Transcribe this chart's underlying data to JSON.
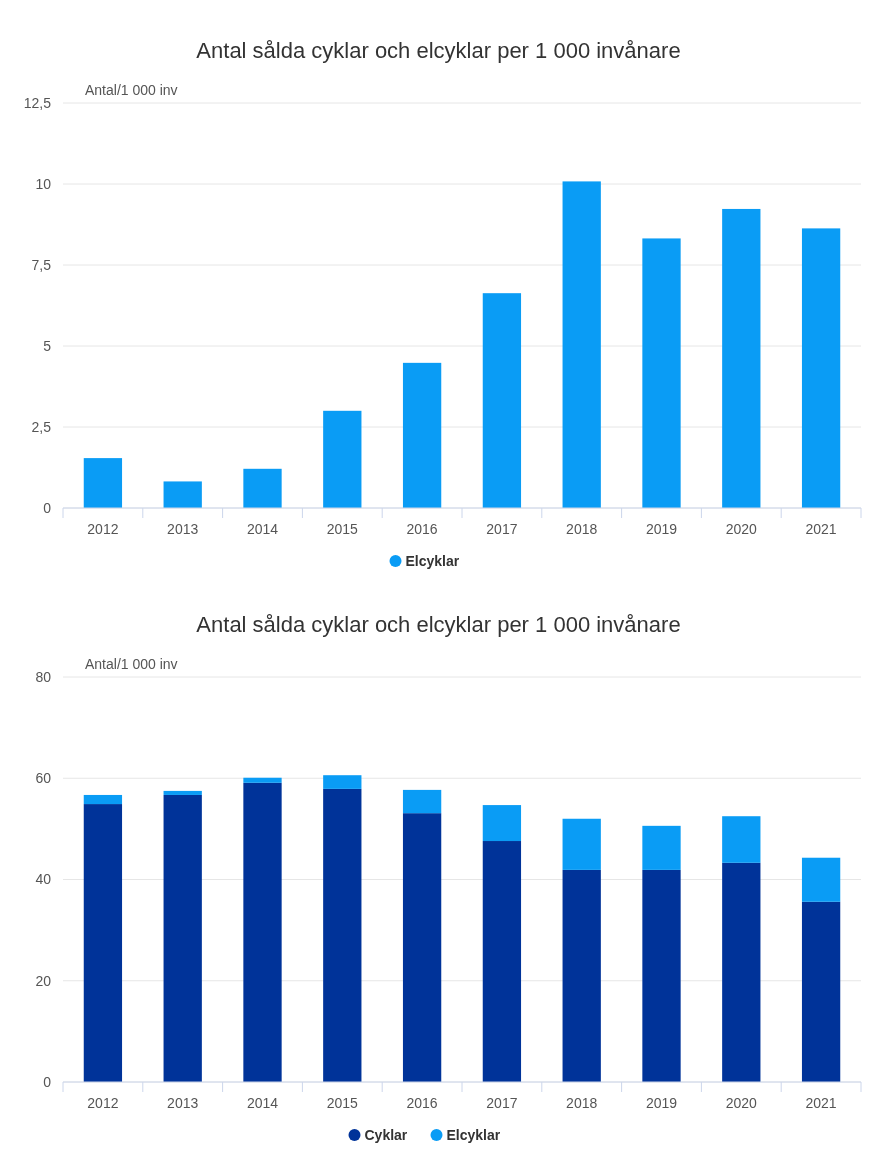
{
  "chart_data": [
    {
      "type": "bar",
      "title": "Antal sålda cyklar och elcyklar per 1 000 invånare",
      "ylabel": "Antal/1 000 inv",
      "categories": [
        "2012",
        "2013",
        "2014",
        "2015",
        "2016",
        "2017",
        "2018",
        "2019",
        "2020",
        "2021"
      ],
      "series": [
        {
          "name": "Elcyklar",
          "color": "#0a9cf5",
          "values": [
            1.54,
            0.82,
            1.21,
            3.0,
            4.48,
            6.63,
            10.08,
            8.32,
            9.23,
            8.63
          ]
        }
      ],
      "ylim": [
        0,
        12.5
      ],
      "yticks": [
        0,
        {
          "value": 2.5,
          "label": "2,5"
        },
        5,
        {
          "value": 7.5,
          "label": "7,5"
        },
        10,
        {
          "value": 12.5,
          "label": "12,5"
        }
      ],
      "grid": "y",
      "legend": "bottom"
    },
    {
      "type": "bar",
      "title": "Antal sålda cyklar och elcyklar per 1 000 invånare",
      "ylabel": "Antal/1 000 inv",
      "categories": [
        "2012",
        "2013",
        "2014",
        "2015",
        "2016",
        "2017",
        "2018",
        "2019",
        "2020",
        "2021"
      ],
      "stacked": true,
      "series": [
        {
          "name": "Cyklar",
          "color": "#003399",
          "values": [
            54.9,
            56.7,
            59.1,
            57.9,
            53.1,
            47.6,
            41.9,
            41.9,
            43.3,
            35.6
          ]
        },
        {
          "name": "Elcyklar",
          "color": "#0a9cf5",
          "values": [
            1.8,
            0.8,
            1.0,
            2.7,
            4.6,
            7.1,
            10.1,
            8.7,
            9.2,
            8.7
          ]
        }
      ],
      "ylim": [
        0,
        80
      ],
      "yticks": [
        0,
        20,
        40,
        60,
        80
      ],
      "grid": "y",
      "legend": "bottom"
    }
  ]
}
